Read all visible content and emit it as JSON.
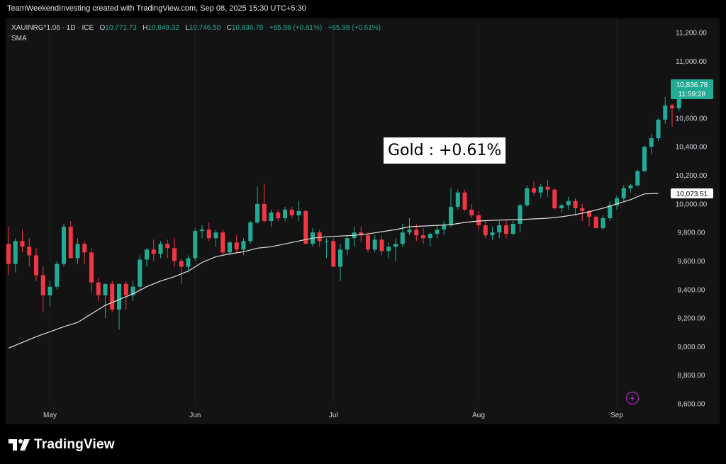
{
  "header": {
    "credit": "TeamWeekendInvesting created with TradingView.com, Sep 08, 2025 15:30 UTC+5:30"
  },
  "legend": {
    "symbol": "XAUINRG*1.06 · 1D · ICE",
    "o_label": "O",
    "o_value": "10,771.73",
    "h_label": "H",
    "h_value": "10,849.32",
    "l_label": "L",
    "l_value": "10,746.50",
    "c_label": "C",
    "c_value": "10,836.78",
    "change": "+65.98 (+0.61%)",
    "change2": "+65.98 (+0.61%)",
    "sma_label": "SMA"
  },
  "annotation": {
    "text": "Gold : +0.61%"
  },
  "price_badges": {
    "last_price": "10,836.78",
    "countdown": "11:59:28",
    "sma_value": "10,073.51"
  },
  "brand": {
    "name": "TradingView"
  },
  "colors": {
    "up": "#22ab94",
    "down": "#f23645",
    "sma": "#e0e0e0",
    "background": "#131313"
  },
  "icons": {
    "lightning": "lightning-icon",
    "logo": "tradingview-logo-icon"
  },
  "chart_data": {
    "type": "candlestick",
    "ylim": [
      8600,
      11300
    ],
    "y_ticks": [
      8600,
      8800,
      9000,
      9200,
      9400,
      9600,
      9800,
      10000,
      10200,
      10400,
      10600,
      10800,
      11000,
      11200
    ],
    "y_tick_labels": [
      "8,600.00",
      "8,800.00",
      "9,000.00",
      "9,200.00",
      "9,400.00",
      "9,600.00",
      "9,800.00",
      "10,000.00",
      "10,200.00",
      "10,400.00",
      "10,600.00",
      "10,800.00",
      "11,000.00",
      "11,200.00"
    ],
    "x_ticks": [
      {
        "label": "May",
        "index": 6
      },
      {
        "label": "Jun",
        "index": 27
      },
      {
        "label": "Jul",
        "index": 47
      },
      {
        "label": "Aug",
        "index": 68
      },
      {
        "label": "Sep",
        "index": 88
      }
    ],
    "candles": [
      [
        9720,
        9840,
        9500,
        9580
      ],
      [
        9580,
        9760,
        9520,
        9740
      ],
      [
        9740,
        9820,
        9660,
        9700
      ],
      [
        9700,
        9760,
        9560,
        9640
      ],
      [
        9640,
        9690,
        9460,
        9500
      ],
      [
        9500,
        9560,
        9240,
        9360
      ],
      [
        9360,
        9460,
        9280,
        9420
      ],
      [
        9420,
        9600,
        9400,
        9580
      ],
      [
        9580,
        9860,
        9560,
        9840
      ],
      [
        9840,
        9880,
        9620,
        9620
      ],
      [
        9620,
        9760,
        9580,
        9720
      ],
      [
        9720,
        9740,
        9580,
        9660
      ],
      [
        9660,
        9690,
        9380,
        9450
      ],
      [
        9450,
        9480,
        9320,
        9360
      ],
      [
        9360,
        9440,
        9200,
        9440
      ],
      [
        9440,
        9460,
        9240,
        9260
      ],
      [
        9260,
        9440,
        9120,
        9440
      ],
      [
        9440,
        9460,
        9260,
        9360
      ],
      [
        9360,
        9460,
        9320,
        9420
      ],
      [
        9420,
        9640,
        9400,
        9610
      ],
      [
        9610,
        9690,
        9560,
        9680
      ],
      [
        9680,
        9750,
        9600,
        9650
      ],
      [
        9650,
        9740,
        9620,
        9720
      ],
      [
        9720,
        9750,
        9620,
        9690
      ],
      [
        9690,
        9760,
        9560,
        9600
      ],
      [
        9600,
        9620,
        9440,
        9560
      ],
      [
        9560,
        9640,
        9520,
        9620
      ],
      [
        9620,
        9830,
        9600,
        9810
      ],
      [
        9810,
        9850,
        9760,
        9820
      ],
      [
        9820,
        9870,
        9740,
        9760
      ],
      [
        9760,
        9820,
        9700,
        9800
      ],
      [
        9800,
        9820,
        9640,
        9660
      ],
      [
        9660,
        9740,
        9640,
        9730
      ],
      [
        9730,
        9780,
        9660,
        9680
      ],
      [
        9680,
        9760,
        9640,
        9740
      ],
      [
        9740,
        9880,
        9720,
        9870
      ],
      [
        9870,
        10120,
        9860,
        10000
      ],
      [
        10000,
        10140,
        9870,
        9880
      ],
      [
        9880,
        9960,
        9840,
        9940
      ],
      [
        9940,
        9960,
        9880,
        9900
      ],
      [
        9900,
        9980,
        9880,
        9960
      ],
      [
        9960,
        9980,
        9900,
        9920
      ],
      [
        9920,
        10020,
        9880,
        9950
      ],
      [
        9950,
        9960,
        9740,
        9720
      ],
      [
        9720,
        9830,
        9700,
        9800
      ],
      [
        9800,
        9820,
        9700,
        9740
      ],
      [
        9740,
        9760,
        9620,
        9740
      ],
      [
        9740,
        9760,
        9560,
        9560
      ],
      [
        9560,
        9720,
        9460,
        9680
      ],
      [
        9680,
        9780,
        9640,
        9760
      ],
      [
        9760,
        9840,
        9700,
        9800
      ],
      [
        9800,
        9840,
        9730,
        9780
      ],
      [
        9780,
        9800,
        9660,
        9680
      ],
      [
        9680,
        9780,
        9660,
        9750
      ],
      [
        9750,
        9780,
        9640,
        9670
      ],
      [
        9670,
        9730,
        9620,
        9700
      ],
      [
        9700,
        9760,
        9600,
        9720
      ],
      [
        9720,
        9860,
        9700,
        9800
      ],
      [
        9800,
        9900,
        9780,
        9820
      ],
      [
        9820,
        9860,
        9740,
        9780
      ],
      [
        9780,
        9830,
        9720,
        9760
      ],
      [
        9760,
        9800,
        9700,
        9790
      ],
      [
        9790,
        9850,
        9760,
        9820
      ],
      [
        9820,
        9880,
        9780,
        9850
      ],
      [
        9850,
        10110,
        9840,
        9980
      ],
      [
        9980,
        10100,
        9960,
        10080
      ],
      [
        10080,
        10100,
        9950,
        9960
      ],
      [
        9960,
        10000,
        9900,
        9920
      ],
      [
        9920,
        9950,
        9820,
        9850
      ],
      [
        9850,
        9880,
        9760,
        9780
      ],
      [
        9780,
        9840,
        9750,
        9800
      ],
      [
        9800,
        9880,
        9760,
        9850
      ],
      [
        9850,
        9890,
        9760,
        9790
      ],
      [
        9790,
        9880,
        9780,
        9860
      ],
      [
        9860,
        10000,
        9800,
        9990
      ],
      [
        9990,
        10130,
        9980,
        10110
      ],
      [
        10110,
        10160,
        10060,
        10080
      ],
      [
        10080,
        10140,
        10040,
        10120
      ],
      [
        10120,
        10170,
        10050,
        10100
      ],
      [
        10100,
        10110,
        9960,
        9970
      ],
      [
        9970,
        10000,
        9940,
        9990
      ],
      [
        9990,
        10050,
        9960,
        10020
      ],
      [
        10020,
        10040,
        9920,
        9970
      ],
      [
        9970,
        10000,
        9880,
        9950
      ],
      [
        9950,
        9960,
        9840,
        9910
      ],
      [
        9910,
        9920,
        9830,
        9830
      ],
      [
        9830,
        9920,
        9820,
        9900
      ],
      [
        9900,
        10020,
        9880,
        9990
      ],
      [
        9990,
        10060,
        9960,
        10040
      ],
      [
        10040,
        10130,
        10020,
        10110
      ],
      [
        10110,
        10140,
        10080,
        10130
      ],
      [
        10130,
        10240,
        10120,
        10230
      ],
      [
        10230,
        10410,
        10220,
        10400
      ],
      [
        10400,
        10490,
        10350,
        10460
      ],
      [
        10460,
        10600,
        10440,
        10590
      ],
      [
        10590,
        10750,
        10560,
        10690
      ],
      [
        10690,
        10700,
        10540,
        10670
      ],
      [
        10670,
        10780,
        10650,
        10770
      ],
      [
        10771.73,
        10849.32,
        10746.5,
        10836.78
      ]
    ],
    "sma": [
      [
        0,
        8990
      ],
      [
        4,
        9070
      ],
      [
        8,
        9140
      ],
      [
        10,
        9170
      ],
      [
        12,
        9230
      ],
      [
        14,
        9290
      ],
      [
        16,
        9330
      ],
      [
        18,
        9370
      ],
      [
        20,
        9420
      ],
      [
        22,
        9460
      ],
      [
        24,
        9490
      ],
      [
        26,
        9530
      ],
      [
        28,
        9590
      ],
      [
        30,
        9630
      ],
      [
        32,
        9650
      ],
      [
        34,
        9665
      ],
      [
        36,
        9690
      ],
      [
        38,
        9700
      ],
      [
        40,
        9720
      ],
      [
        42,
        9740
      ],
      [
        44,
        9760
      ],
      [
        46,
        9770
      ],
      [
        48,
        9775
      ],
      [
        50,
        9780
      ],
      [
        52,
        9790
      ],
      [
        54,
        9805
      ],
      [
        56,
        9820
      ],
      [
        58,
        9840
      ],
      [
        60,
        9845
      ],
      [
        62,
        9850
      ],
      [
        64,
        9855
      ],
      [
        66,
        9870
      ],
      [
        68,
        9880
      ],
      [
        70,
        9885
      ],
      [
        72,
        9888
      ],
      [
        74,
        9890
      ],
      [
        76,
        9895
      ],
      [
        78,
        9900
      ],
      [
        80,
        9910
      ],
      [
        82,
        9925
      ],
      [
        84,
        9945
      ],
      [
        86,
        9970
      ],
      [
        88,
        10000
      ],
      [
        90,
        10030
      ],
      [
        92,
        10070
      ],
      [
        94,
        10073.51
      ]
    ]
  }
}
